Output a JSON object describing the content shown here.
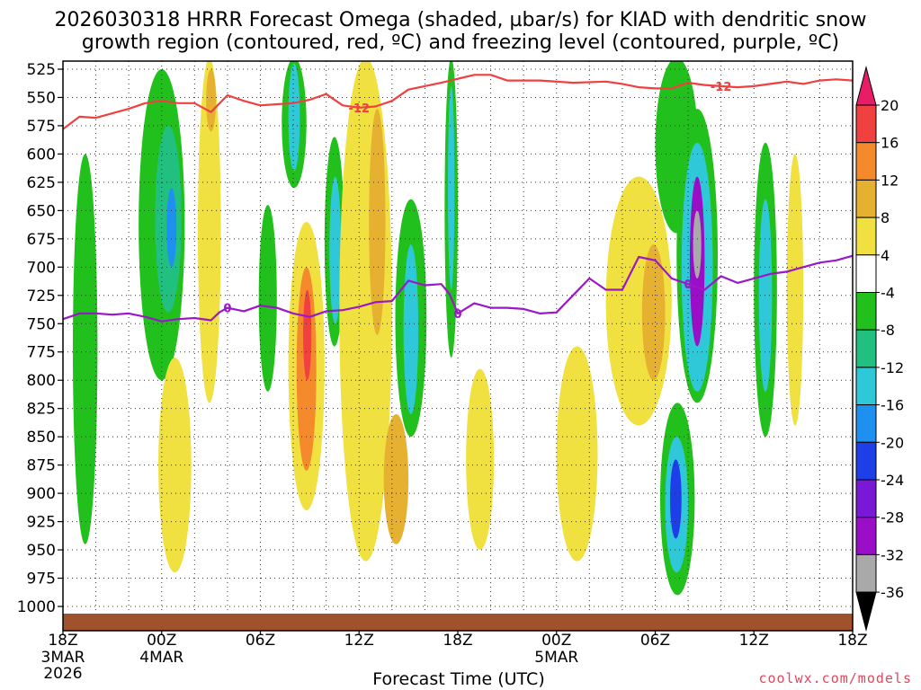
{
  "title_line1": "2026030318 HRRR Forecast Omega (shaded, µbar/s) for KIAD with dendritic snow",
  "title_line2": "growth region (contoured, red, ºC) and freezing level (contoured, purple, ºC)",
  "xlabel": "Forecast Time (UTC)",
  "credit": "coolwx.com/models",
  "chart_data": {
    "type": "heatmap",
    "x_hours": [
      0,
      48
    ],
    "y_levels": [
      525,
      550,
      575,
      600,
      625,
      650,
      675,
      700,
      725,
      750,
      775,
      800,
      825,
      850,
      875,
      900,
      925,
      950,
      975,
      1000
    ],
    "ylim": [
      515,
      1005
    ],
    "x_ticks": [
      {
        "hour": 0,
        "label": "18Z",
        "date": "3MAR",
        "year": "2026"
      },
      {
        "hour": 6,
        "label": "00Z",
        "date": "4MAR"
      },
      {
        "hour": 12,
        "label": "06Z"
      },
      {
        "hour": 18,
        "label": "12Z"
      },
      {
        "hour": 24,
        "label": "18Z"
      },
      {
        "hour": 30,
        "label": "00Z",
        "date": "5MAR"
      },
      {
        "hour": 36,
        "label": "06Z"
      },
      {
        "hour": 42,
        "label": "12Z"
      },
      {
        "hour": 48,
        "label": "18Z"
      }
    ],
    "colorbar": {
      "labels": [
        "20",
        "16",
        "12",
        "8",
        "4",
        "-4",
        "-8",
        "-12",
        "-16",
        "-20",
        "-24",
        "-28",
        "-32",
        "-36"
      ],
      "colors": [
        "#e81d68",
        "#f04040",
        "#f58a2c",
        "#e6b030",
        "#f0e040",
        "#ffffff",
        "#22c01c",
        "#22c080",
        "#2fc8d8",
        "#1e90f0",
        "#1e3ee8",
        "#7a18d8",
        "#9a0ec8",
        "#a9a9a9",
        "#000000"
      ]
    },
    "contours": {
      "dgz_minus12": {
        "label": "-12",
        "color": "#f04040",
        "points": [
          [
            0,
            578
          ],
          [
            1,
            567
          ],
          [
            2,
            568
          ],
          [
            4,
            560
          ],
          [
            5,
            555
          ],
          [
            6,
            553
          ],
          [
            7,
            555
          ],
          [
            8,
            555
          ],
          [
            9,
            563
          ],
          [
            10,
            548
          ],
          [
            11,
            553
          ],
          [
            12,
            557
          ],
          [
            13,
            556
          ],
          [
            14,
            555
          ],
          [
            15,
            552
          ],
          [
            16,
            547
          ],
          [
            17,
            557
          ],
          [
            18,
            559
          ],
          [
            19,
            558
          ],
          [
            20,
            553
          ],
          [
            21,
            543
          ],
          [
            23,
            537
          ],
          [
            25,
            530
          ],
          [
            26,
            530
          ],
          [
            27,
            535
          ],
          [
            29,
            535
          ],
          [
            31,
            537
          ],
          [
            33,
            536
          ],
          [
            34,
            538
          ],
          [
            35,
            541
          ],
          [
            36,
            542
          ],
          [
            37,
            542
          ],
          [
            38,
            537
          ],
          [
            39,
            539
          ],
          [
            40,
            540
          ],
          [
            41,
            541
          ],
          [
            42,
            540
          ],
          [
            43,
            538
          ],
          [
            44,
            536
          ],
          [
            45,
            538
          ],
          [
            46,
            535
          ],
          [
            47,
            534
          ],
          [
            48,
            535
          ]
        ]
      },
      "freezing_level_0": {
        "label": "0",
        "color": "#9a18c8",
        "points": [
          [
            0,
            746
          ],
          [
            1,
            741
          ],
          [
            2,
            741
          ],
          [
            3,
            742
          ],
          [
            4,
            741
          ],
          [
            5,
            744
          ],
          [
            6,
            748
          ],
          [
            7,
            746
          ],
          [
            8,
            745
          ],
          [
            9,
            747
          ],
          [
            9.5,
            740
          ],
          [
            10,
            736
          ],
          [
            11,
            739
          ],
          [
            12,
            734
          ],
          [
            13,
            736
          ],
          [
            14,
            741
          ],
          [
            15,
            744
          ],
          [
            16,
            739
          ],
          [
            17,
            738
          ],
          [
            18,
            735
          ],
          [
            19,
            731
          ],
          [
            20,
            730
          ],
          [
            21,
            712
          ],
          [
            22,
            716
          ],
          [
            23,
            715
          ],
          [
            23.5,
            724
          ],
          [
            24,
            741
          ],
          [
            25,
            732
          ],
          [
            26,
            736
          ],
          [
            27,
            736
          ],
          [
            28,
            737
          ],
          [
            29,
            741
          ],
          [
            30,
            740
          ],
          [
            31,
            725
          ],
          [
            32,
            710
          ],
          [
            33,
            720
          ],
          [
            34,
            720
          ],
          [
            35,
            691
          ],
          [
            36,
            694
          ],
          [
            37,
            710
          ],
          [
            38,
            715
          ],
          [
            39,
            720
          ],
          [
            40,
            708
          ],
          [
            41,
            714
          ],
          [
            42,
            710
          ],
          [
            43,
            706
          ],
          [
            44,
            704
          ],
          [
            45,
            700
          ],
          [
            46,
            696
          ],
          [
            47,
            694
          ],
          [
            48,
            690
          ]
        ]
      }
    },
    "omega_regions": [
      {
        "desc": "green band early",
        "h": [
          0.6,
          2.1
        ],
        "p": [
          600,
          945
        ],
        "v": -6
      },
      {
        "desc": "green upper-left",
        "h": [
          4.6,
          7.4
        ],
        "p": [
          525,
          800
        ],
        "v": -6
      },
      {
        "desc": "teal core",
        "h": [
          5.6,
          7.2
        ],
        "p": [
          575,
          740
        ],
        "v": -10
      },
      {
        "desc": "blue core",
        "h": [
          6.3,
          6.9
        ],
        "p": [
          630,
          700
        ],
        "v": -16
      },
      {
        "desc": "yellow low left",
        "h": [
          5.8,
          7.8
        ],
        "p": [
          780,
          970
        ],
        "v": 5
      },
      {
        "desc": "yellow top left",
        "h": [
          8.2,
          9.6
        ],
        "p": [
          515,
          820
        ],
        "v": 6
      },
      {
        "desc": "orange top left",
        "h": [
          8.7,
          9.3
        ],
        "p": [
          525,
          580
        ],
        "v": 10
      },
      {
        "desc": "green col 12-13",
        "h": [
          11.9,
          13.0
        ],
        "p": [
          645,
          810
        ],
        "v": -6
      },
      {
        "desc": "green top 13-14",
        "h": [
          13.3,
          14.8
        ],
        "p": [
          515,
          630
        ],
        "v": -6
      },
      {
        "desc": "teal top 13-14",
        "h": [
          13.7,
          14.4
        ],
        "p": [
          520,
          615
        ],
        "v": -14
      },
      {
        "desc": "yellow col 14-16",
        "h": [
          13.7,
          15.9
        ],
        "p": [
          660,
          915
        ],
        "v": 5
      },
      {
        "desc": "orange col 15",
        "h": [
          14.2,
          15.4
        ],
        "p": [
          700,
          880
        ],
        "v": 12
      },
      {
        "desc": "red core 15",
        "h": [
          14.6,
          15.1
        ],
        "p": [
          720,
          800
        ],
        "v": 18
      },
      {
        "desc": "green col 16-17",
        "h": [
          15.9,
          17.1
        ],
        "p": [
          585,
          770
        ],
        "v": -6
      },
      {
        "desc": "teal col 16-17",
        "h": [
          16.2,
          16.9
        ],
        "p": [
          620,
          750
        ],
        "v": -12
      },
      {
        "desc": "yellow col 17-20",
        "h": [
          16.8,
          20.0
        ],
        "p": [
          515,
          960
        ],
        "v": 5
      },
      {
        "desc": "orange col 19",
        "h": [
          18.6,
          19.6
        ],
        "p": [
          560,
          760
        ],
        "v": 11
      },
      {
        "desc": "orange low 20",
        "h": [
          19.5,
          21.0
        ],
        "p": [
          830,
          945
        ],
        "v": 11
      },
      {
        "desc": "green col 21",
        "h": [
          20.2,
          22.1
        ],
        "p": [
          640,
          850
        ],
        "v": -6
      },
      {
        "desc": "teal col 21",
        "h": [
          20.7,
          21.6
        ],
        "p": [
          680,
          830
        ],
        "v": -12
      },
      {
        "desc": "green thin 23",
        "h": [
          23.2,
          24.0
        ],
        "p": [
          515,
          780
        ],
        "v": -7
      },
      {
        "desc": "teal thin 23",
        "h": [
          23.4,
          23.8
        ],
        "p": [
          540,
          720
        ],
        "v": -12
      },
      {
        "desc": "yellow low 25",
        "h": [
          24.5,
          26.2
        ],
        "p": [
          790,
          950
        ],
        "v": 5
      },
      {
        "desc": "yellow low 31",
        "h": [
          30.0,
          32.5
        ],
        "p": [
          770,
          960
        ],
        "v": 5
      },
      {
        "desc": "yellow col 34-37",
        "h": [
          33.0,
          37.0
        ],
        "p": [
          620,
          840
        ],
        "v": 5
      },
      {
        "desc": "orange col 36",
        "h": [
          35.2,
          36.6
        ],
        "p": [
          680,
          800
        ],
        "v": 11
      },
      {
        "desc": "green col 37-38",
        "h": [
          36.0,
          38.6
        ],
        "p": [
          515,
          670
        ],
        "v": -6
      },
      {
        "desc": "green core 38",
        "h": [
          37.3,
          39.8
        ],
        "p": [
          560,
          820
        ],
        "v": -7
      },
      {
        "desc": "teal core 38",
        "h": [
          37.6,
          39.5
        ],
        "p": [
          590,
          810
        ],
        "v": -14
      },
      {
        "desc": "purple core 38",
        "h": [
          38.1,
          39.0
        ],
        "p": [
          620,
          770
        ],
        "v": -28
      },
      {
        "desc": "grey core 38",
        "h": [
          38.3,
          38.8
        ],
        "p": [
          650,
          710
        ],
        "v": -33
      },
      {
        "desc": "green low 37",
        "h": [
          36.3,
          38.4
        ],
        "p": [
          820,
          990
        ],
        "v": -7
      },
      {
        "desc": "teal low 37",
        "h": [
          36.6,
          38.0
        ],
        "p": [
          850,
          970
        ],
        "v": -14
      },
      {
        "desc": "blue low 37",
        "h": [
          36.9,
          37.6
        ],
        "p": [
          870,
          940
        ],
        "v": -22
      },
      {
        "desc": "green col 43",
        "h": [
          42.0,
          43.4
        ],
        "p": [
          590,
          850
        ],
        "v": -6
      },
      {
        "desc": "teal col 43",
        "h": [
          42.3,
          43.1
        ],
        "p": [
          640,
          810
        ],
        "v": -12
      },
      {
        "desc": "yellow col 44-45",
        "h": [
          44.0,
          45.0
        ],
        "p": [
          600,
          840
        ],
        "v": 5
      }
    ]
  }
}
